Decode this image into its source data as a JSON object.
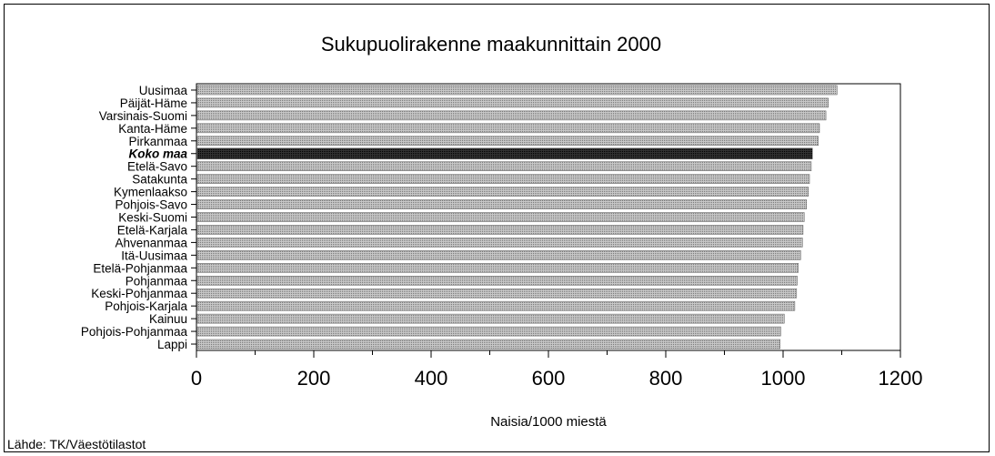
{
  "chart_data": {
    "type": "bar",
    "orientation": "horizontal",
    "title": "Sukupuolirakenne maakunnittain 2000",
    "xlabel": "Naisia/1000 miestä",
    "ylabel": "",
    "xlim": [
      0,
      1200
    ],
    "x_ticks": [
      "0",
      "200",
      "400",
      "600",
      "800",
      "1000",
      "1200"
    ],
    "grid": false,
    "categories": [
      "Uusimaa",
      "Päijät-Häme",
      "Varsinais-Suomi",
      "Kanta-Häme",
      "Pirkanmaa",
      "Koko maa",
      "Etelä-Savo",
      "Satakunta",
      "Kymenlaakso",
      "Pohjois-Savo",
      "Keski-Suomi",
      "Etelä-Karjala",
      "Ahvenanmaa",
      "Itä-Uusimaa",
      "Etelä-Pohjanmaa",
      "Pohjanmaa",
      "Keski-Pohjanmaa",
      "Pohjois-Karjala",
      "Kainuu",
      "Pohjois-Pohjanmaa",
      "Lappi"
    ],
    "values": [
      1092,
      1077,
      1073,
      1062,
      1060,
      1050,
      1048,
      1045,
      1043,
      1040,
      1036,
      1034,
      1033,
      1030,
      1026,
      1024,
      1023,
      1020,
      1002,
      996,
      995
    ],
    "highlight_index": 5
  },
  "source": "Lähde: TK/Väestötilastot"
}
